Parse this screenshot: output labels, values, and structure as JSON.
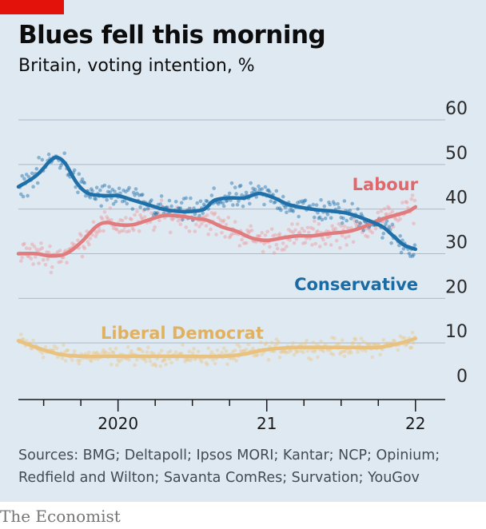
{
  "header": {
    "title": "Blues fell this morning",
    "subtitle": "Britain, voting intention, %"
  },
  "chart_data": {
    "type": "line",
    "title": "Blues fell this morning",
    "subtitle": "Britain, voting intention, %",
    "xlabel": "",
    "ylabel": "%",
    "ylim": [
      0,
      60
    ],
    "yticks": [
      "0",
      "10",
      "20",
      "30",
      "40",
      "50",
      "60"
    ],
    "xlim": [
      2019.33,
      2022.2
    ],
    "xticks": [
      {
        "label": "2020",
        "x": 2020.0
      },
      {
        "label": "21",
        "x": 2021.0
      },
      {
        "label": "22",
        "x": 2022.0
      }
    ],
    "grid": true,
    "series": [
      {
        "name": "Conservative",
        "color": "#1f6fa8",
        "point_color": "#1f6fa8",
        "label_position": "bottom-right",
        "trend": [
          [
            2019.33,
            45
          ],
          [
            2019.45,
            47.5
          ],
          [
            2019.55,
            51
          ],
          [
            2019.6,
            51.5
          ],
          [
            2019.65,
            50
          ],
          [
            2019.72,
            46
          ],
          [
            2019.8,
            43.5
          ],
          [
            2019.92,
            43
          ],
          [
            2020.0,
            43
          ],
          [
            2020.1,
            42
          ],
          [
            2020.2,
            41
          ],
          [
            2020.3,
            40
          ],
          [
            2020.4,
            39.5
          ],
          [
            2020.5,
            39.5
          ],
          [
            2020.58,
            40
          ],
          [
            2020.65,
            42
          ],
          [
            2020.75,
            42.5
          ],
          [
            2020.85,
            42.5
          ],
          [
            2020.95,
            43.5
          ],
          [
            2021.05,
            42.5
          ],
          [
            2021.15,
            41
          ],
          [
            2021.3,
            40
          ],
          [
            2021.45,
            39.5
          ],
          [
            2021.55,
            39
          ],
          [
            2021.68,
            37.5
          ],
          [
            2021.78,
            36
          ],
          [
            2021.85,
            34
          ],
          [
            2021.92,
            32
          ],
          [
            2022.0,
            31
          ]
        ]
      },
      {
        "name": "Labour",
        "color": "#e07b7e",
        "point_color": "#ee9a9c",
        "label_position": "top-right",
        "trend": [
          [
            2019.33,
            30
          ],
          [
            2019.45,
            30
          ],
          [
            2019.55,
            29.5
          ],
          [
            2019.65,
            30
          ],
          [
            2019.75,
            32.5
          ],
          [
            2019.85,
            36
          ],
          [
            2019.92,
            37
          ],
          [
            2020.0,
            36.5
          ],
          [
            2020.1,
            36.5
          ],
          [
            2020.2,
            37.5
          ],
          [
            2020.3,
            38.5
          ],
          [
            2020.4,
            38.5
          ],
          [
            2020.5,
            38
          ],
          [
            2020.6,
            37.5
          ],
          [
            2020.7,
            36
          ],
          [
            2020.8,
            35
          ],
          [
            2020.9,
            33.5
          ],
          [
            2021.0,
            33
          ],
          [
            2021.1,
            33.5
          ],
          [
            2021.2,
            34
          ],
          [
            2021.3,
            34
          ],
          [
            2021.42,
            34.5
          ],
          [
            2021.55,
            35
          ],
          [
            2021.65,
            36
          ],
          [
            2021.75,
            37.5
          ],
          [
            2021.85,
            38.5
          ],
          [
            2021.95,
            39.5
          ],
          [
            2022.0,
            40.5
          ]
        ]
      },
      {
        "name": "Liberal Democrat",
        "color": "#e9c27f",
        "point_color": "#ecc684",
        "label_position": "top-left",
        "trend": [
          [
            2019.33,
            10.5
          ],
          [
            2019.45,
            9
          ],
          [
            2019.6,
            7.5
          ],
          [
            2019.75,
            7
          ],
          [
            2019.9,
            7
          ],
          [
            2020.1,
            7
          ],
          [
            2020.3,
            7
          ],
          [
            2020.5,
            7
          ],
          [
            2020.7,
            7
          ],
          [
            2020.85,
            7.5
          ],
          [
            2021.0,
            8.5
          ],
          [
            2021.2,
            9
          ],
          [
            2021.4,
            9
          ],
          [
            2021.6,
            9
          ],
          [
            2021.75,
            9
          ],
          [
            2021.9,
            10
          ],
          [
            2022.0,
            11
          ]
        ]
      }
    ],
    "scatter_spread": {
      "Conservative": 2.2,
      "Labour": 2.4,
      "Liberal Democrat": 1.6
    },
    "scatter_step": 0.0075
  },
  "source": "Sources: BMG; Deltapoll; Ipsos MORI; Kantar; NCP; Opinium; Redfield and Wilton; Savanta ComRes; Survation; YouGov",
  "footer": "The Economist"
}
